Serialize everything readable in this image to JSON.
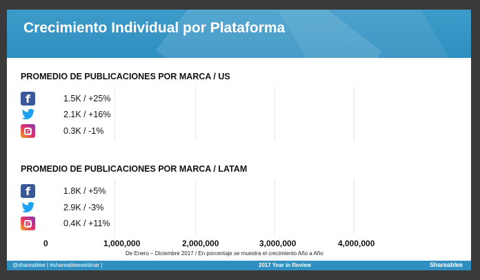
{
  "slide": {
    "title": "Crecimiento Individual por Plataforma"
  },
  "sections": [
    {
      "title": "PROMEDIO DE PUBLICACIONES POR MARCA / US",
      "rows": [
        {
          "platform_icon": "facebook-icon",
          "value": "1.5K / +25%"
        },
        {
          "platform_icon": "twitter-icon",
          "value": "2.1K / +16%"
        },
        {
          "platform_icon": "instagram-icon",
          "value": "0.3K / -1%"
        }
      ]
    },
    {
      "title": "PROMEDIO DE PUBLICACIONES POR MARCA / LATAM",
      "rows": [
        {
          "platform_icon": "facebook-icon",
          "value": "1.8K / +5%"
        },
        {
          "platform_icon": "twitter-icon",
          "value": "2.9K / -3%"
        },
        {
          "platform_icon": "instagram-icon",
          "value": "0.4K / +11%"
        }
      ]
    }
  ],
  "axis": {
    "ticks": [
      "0",
      "1,000,000",
      "2,000,000",
      "3,000,000",
      "4,000,000"
    ]
  },
  "note": "De Enero – Diciembre 2017 / En porcentaje se muestra el crecimiento Año a Año",
  "footer": {
    "left": "@shareablee | #shareableewebinar |",
    "center": "2017 Year in Review",
    "logo": "Shareablee"
  },
  "colors": {
    "brand_blue": "#2f8fc0",
    "facebook": "#3b5998",
    "twitter": "#1da1f2",
    "instagram": "#e1306c"
  }
}
